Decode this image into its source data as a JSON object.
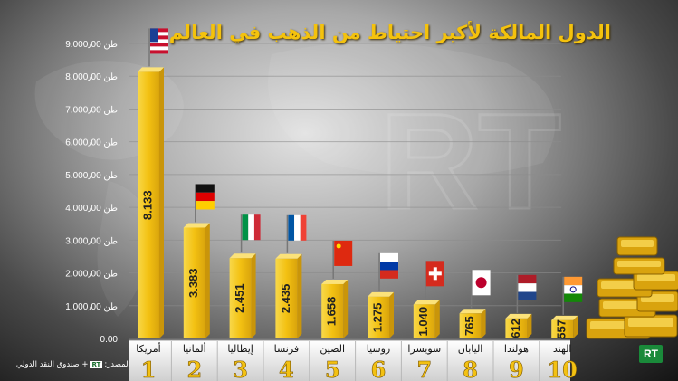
{
  "title": "الدول المالكة لأكبر احتياط من الذهب في العالم",
  "source": {
    "prefix": "المصدر:",
    "logo": "RT",
    "suffix": "+ صندوق النقد الدولي"
  },
  "watermark_badge": "RT",
  "colors": {
    "gold": "#f3c112",
    "gold_dark": "#c9950a",
    "title": "#f4c20d"
  },
  "chart_data": {
    "type": "bar",
    "title": "الدول المالكة لأكبر احتياط من الذهب في العالم",
    "ylim": [
      0,
      9000
    ],
    "grid": true,
    "yticks": [
      0,
      1000,
      2000,
      3000,
      4000,
      5000,
      6000,
      7000,
      8000,
      9000
    ],
    "ytick_labels": [
      "0.00",
      "1.000٫00 طن",
      "2.000٫00 طن",
      "3.000٫00 طن",
      "4.000٫00 طن",
      "5.000٫00 طن",
      "6.000٫00 طن",
      "7.000٫00 طن",
      "8.000٫00 طن",
      "9.000٫00 طن"
    ],
    "categories": [
      "أمريكا",
      "ألمانيا",
      "إيطاليا",
      "فرنسا",
      "الصين",
      "روسيا",
      "سويسرا",
      "اليابان",
      "هولندا",
      "الهند"
    ],
    "values": [
      8133,
      3383,
      2451,
      2435,
      1658,
      1275,
      1040,
      765,
      612,
      557
    ],
    "value_labels": [
      "8.133",
      "3.383",
      "2.451",
      "2.435",
      "1.658",
      "1.275",
      "1.040",
      "765",
      "612",
      "557"
    ],
    "ranks": [
      "1",
      "2",
      "3",
      "4",
      "5",
      "6",
      "7",
      "8",
      "9",
      "10"
    ],
    "flags": [
      "us-flag-icon",
      "germany-flag-icon",
      "italy-flag-icon",
      "france-flag-icon",
      "china-flag-icon",
      "russia-flag-icon",
      "switzerland-flag-icon",
      "japan-flag-icon",
      "netherlands-flag-icon",
      "india-flag-icon"
    ]
  }
}
